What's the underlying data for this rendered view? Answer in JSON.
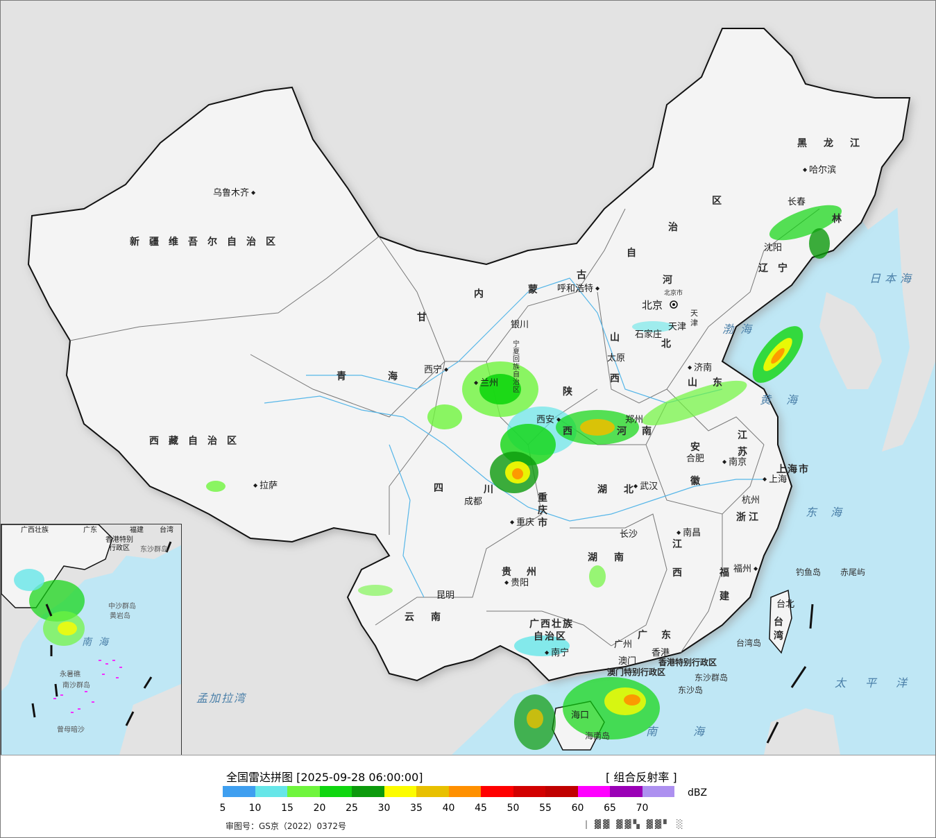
{
  "map": {
    "province_labels": [
      {
        "id": "xinjiang",
        "text": "新疆维吾尔自治区"
      },
      {
        "id": "xizang",
        "text": "西藏自治区"
      },
      {
        "id": "qinghai",
        "text": "青海"
      },
      {
        "id": "gansu",
        "text": "甘"
      },
      {
        "id": "neimenggu1",
        "text": "内"
      },
      {
        "id": "neimenggu2",
        "text": "蒙"
      },
      {
        "id": "neimenggu3",
        "text": "古"
      },
      {
        "id": "neimenggu4",
        "text": "自"
      },
      {
        "id": "neimenggu5",
        "text": "治"
      },
      {
        "id": "neimenggu6",
        "text": "区"
      },
      {
        "id": "heilongjiang",
        "text": "黑龙江"
      },
      {
        "id": "jilin",
        "text": "林"
      },
      {
        "id": "liaoning",
        "text": "辽宁"
      },
      {
        "id": "hebei1",
        "text": "河"
      },
      {
        "id": "hebei2",
        "text": "北"
      },
      {
        "id": "shanxi1",
        "text": "山"
      },
      {
        "id": "shanxi2",
        "text": "西"
      },
      {
        "id": "shandong",
        "text": "山东"
      },
      {
        "id": "henan",
        "text": "河南"
      },
      {
        "id": "shaanxi1",
        "text": "陕"
      },
      {
        "id": "shaanxi2",
        "text": "西"
      },
      {
        "id": "sichuan1",
        "text": "四"
      },
      {
        "id": "sichuan2",
        "text": "川"
      },
      {
        "id": "chongqing",
        "text": "重庆市"
      },
      {
        "id": "hubei",
        "text": "湖北"
      },
      {
        "id": "hunan",
        "text": "湖南"
      },
      {
        "id": "anhui1",
        "text": "安"
      },
      {
        "id": "anhui2",
        "text": "徽"
      },
      {
        "id": "jiangsu",
        "text": "江苏"
      },
      {
        "id": "shanghai",
        "text": "上海市"
      },
      {
        "id": "zhejiang",
        "text": "浙江"
      },
      {
        "id": "jiangxi1",
        "text": "江"
      },
      {
        "id": "jiangxi2",
        "text": "西"
      },
      {
        "id": "fujian1",
        "text": "福"
      },
      {
        "id": "fujian2",
        "text": "建"
      },
      {
        "id": "guizhou",
        "text": "贵州"
      },
      {
        "id": "yunnan",
        "text": "云南"
      },
      {
        "id": "guangxi1",
        "text": "广西壮族"
      },
      {
        "id": "guangxi2",
        "text": "自治区"
      },
      {
        "id": "guangdong",
        "text": "广东"
      },
      {
        "id": "taiwan",
        "text": "台湾"
      },
      {
        "id": "hongkong",
        "text": "香港特别行政区"
      },
      {
        "id": "macau",
        "text": "澳门特别行政区"
      },
      {
        "id": "ningxia",
        "text": "宁夏回族自治区"
      },
      {
        "id": "tianjin",
        "text": "天津"
      },
      {
        "id": "beijing",
        "text": "北京市"
      }
    ],
    "city_labels": [
      {
        "id": "urumqi",
        "text": "乌鲁木齐"
      },
      {
        "id": "lhasa",
        "text": "拉萨"
      },
      {
        "id": "xining",
        "text": "西宁"
      },
      {
        "id": "lanzhou",
        "text": "兰州"
      },
      {
        "id": "yinchuan",
        "text": "银川"
      },
      {
        "id": "hohhot",
        "text": "呼和浩特"
      },
      {
        "id": "beijing",
        "text": "北京"
      },
      {
        "id": "shijiazhuang",
        "text": "石家庄"
      },
      {
        "id": "taiyuan",
        "text": "太原"
      },
      {
        "id": "jinan",
        "text": "济南"
      },
      {
        "id": "zhengzhou",
        "text": "郑州"
      },
      {
        "id": "xian",
        "text": "西安"
      },
      {
        "id": "chengdu",
        "text": "成都"
      },
      {
        "id": "chongqing",
        "text": "重庆"
      },
      {
        "id": "wuhan",
        "text": "武汉"
      },
      {
        "id": "hefei",
        "text": "合肥"
      },
      {
        "id": "nanjing",
        "text": "南京"
      },
      {
        "id": "shanghai",
        "text": "上海"
      },
      {
        "id": "hangzhou",
        "text": "杭州"
      },
      {
        "id": "nanchang",
        "text": "南昌"
      },
      {
        "id": "changsha",
        "text": "长沙"
      },
      {
        "id": "fuzhou",
        "text": "福州"
      },
      {
        "id": "guiyang",
        "text": "贵阳"
      },
      {
        "id": "kunming",
        "text": "昆明"
      },
      {
        "id": "nanning",
        "text": "南宁"
      },
      {
        "id": "guangzhou",
        "text": "广州"
      },
      {
        "id": "hongkong",
        "text": "香港"
      },
      {
        "id": "macau",
        "text": "澳门"
      },
      {
        "id": "taipei",
        "text": "台北"
      },
      {
        "id": "harbin",
        "text": "哈尔滨"
      },
      {
        "id": "changchun",
        "text": "长春"
      },
      {
        "id": "shenyang",
        "text": "沈阳"
      },
      {
        "id": "tianjin",
        "text": "天津"
      },
      {
        "id": "haikou",
        "text": "海口"
      }
    ],
    "sea_labels": [
      {
        "id": "japan-sea",
        "text": "日本海"
      },
      {
        "id": "bohai",
        "text": "渤海"
      },
      {
        "id": "yellow-sea",
        "text": "黄海"
      },
      {
        "id": "east-sea",
        "text": "东海"
      },
      {
        "id": "pacific",
        "text": "太平洋"
      },
      {
        "id": "south-sea",
        "text": "南海"
      },
      {
        "id": "bengal",
        "text": "孟加拉湾"
      },
      {
        "id": "taiwan-island",
        "text": "台湾岛"
      },
      {
        "id": "diaoyu",
        "text": "钓鱼岛"
      },
      {
        "id": "chiwei",
        "text": "赤尾屿"
      },
      {
        "id": "dongsha-islands",
        "text": "东沙群岛"
      },
      {
        "id": "dongsha-island",
        "text": "东沙岛"
      },
      {
        "id": "hainan-island",
        "text": "海南岛"
      }
    ],
    "inset_labels": [
      {
        "id": "guangxi",
        "text": "广西壮族"
      },
      {
        "id": "guangdong",
        "text": "广东"
      },
      {
        "id": "fujian",
        "text": "福建"
      },
      {
        "id": "taiwan",
        "text": "台湾"
      },
      {
        "id": "hk",
        "text": "香港特别"
      },
      {
        "id": "hk2",
        "text": "行政区"
      },
      {
        "id": "dongsha",
        "text": "东沙群岛"
      },
      {
        "id": "zhongsha",
        "text": "中沙群岛"
      },
      {
        "id": "huangyan",
        "text": "黄岩岛"
      },
      {
        "id": "nanhai",
        "text": "南海"
      },
      {
        "id": "nansha",
        "text": "南沙群岛"
      },
      {
        "id": "zengmu",
        "text": "曾母暗沙"
      },
      {
        "id": "yongshu",
        "text": "永暑礁"
      }
    ],
    "colors": {
      "sea": "#bfe7f5",
      "land_china": "#f4f4f4",
      "land_foreign": "#e3e3e3",
      "border": "#111111",
      "shadow": "#bdbdbd"
    }
  },
  "legend": {
    "title": "全国雷达拼图 [2025-09-28 06:00:00]",
    "product": "[ 组合反射率 ]",
    "unit": "dBZ",
    "approval": "审图号：GS京（2022）0372号",
    "credit": "| ▓▓ ▓▓▚ ▓▓▘ ░",
    "colors": [
      "#3f9ff0",
      "#66e6e8",
      "#6ff53d",
      "#10d610",
      "#0c9a0c",
      "#fcfc00",
      "#e8c000",
      "#ff9000",
      "#ff0000",
      "#d20000",
      "#c00000",
      "#ff00ff",
      "#9a00b6",
      "#ad90f0"
    ],
    "ticks": [
      "5",
      "10",
      "15",
      "20",
      "25",
      "30",
      "35",
      "40",
      "45",
      "50",
      "55",
      "60",
      "65",
      "70"
    ]
  }
}
